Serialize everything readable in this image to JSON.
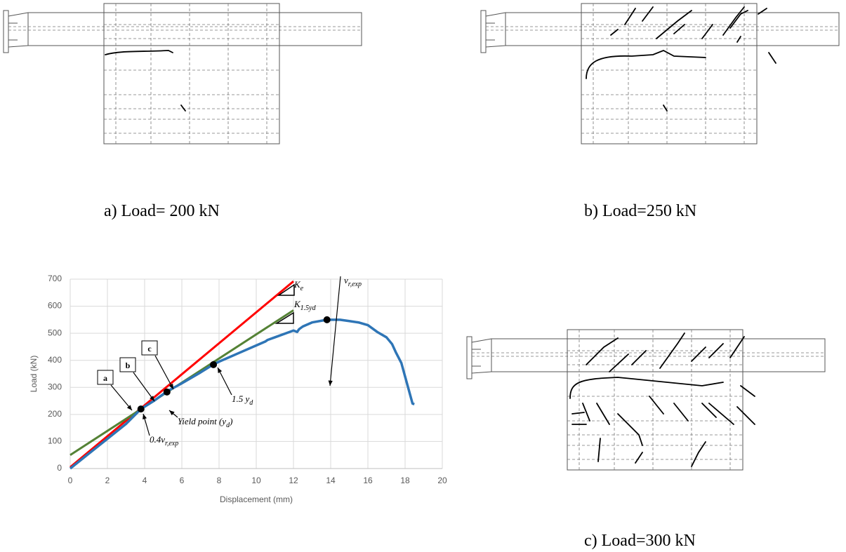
{
  "captions": [
    "a)  Load= 200 kN",
    "b) Load=250 kN",
    "c) Load=300 kN"
  ],
  "chart_data": {
    "type": "line",
    "x_label": "Displacement (mm)",
    "y_label": "Load (kN)",
    "xlim": [
      0,
      20
    ],
    "ylim": [
      0,
      700
    ],
    "xticks": [
      0,
      2,
      4,
      6,
      8,
      10,
      12,
      14,
      16,
      18,
      20
    ],
    "yticks": [
      0,
      100,
      200,
      300,
      400,
      500,
      600,
      700
    ],
    "grid": true,
    "series": [
      {
        "color": "#2e75b6",
        "x": [
          0,
          1,
          2,
          3,
          3.8,
          4.5,
          5.2,
          6,
          7,
          7.7,
          8,
          9,
          10,
          10.5,
          10.6,
          11,
          12,
          12.2,
          12.3,
          12.5,
          13,
          13.8,
          14.5,
          15,
          15.5,
          16,
          16.5,
          17,
          17.3,
          17.5,
          17.8,
          18,
          18.2,
          18.4,
          18.5
        ],
        "values": [
          0,
          55,
          110,
          165,
          220,
          250,
          285,
          315,
          355,
          385,
          395,
          425,
          455,
          470,
          475,
          485,
          510,
          505,
          515,
          525,
          540,
          550,
          550,
          545,
          540,
          530,
          505,
          485,
          460,
          430,
          390,
          340,
          290,
          240,
          238
        ]
      },
      {
        "color": "#ff0000",
        "x": [
          0,
          12
        ],
        "values": [
          5,
          692
        ]
      },
      {
        "color": "#548235",
        "x": [
          0,
          12
        ],
        "values": [
          50,
          585
        ]
      }
    ],
    "markers": {
      "color": "#000000",
      "x": [
        3.8,
        5.2,
        7.7,
        13.8
      ],
      "values": [
        220,
        283,
        384,
        550
      ]
    },
    "annotations": [
      {
        "text": "a"
      },
      {
        "text": "b"
      },
      {
        "text": "c"
      },
      {
        "text": "Yield point (y",
        "sub": "d",
        "tail": ")"
      },
      {
        "text": "0.4v",
        "sub": "r,exp"
      },
      {
        "text": "1.5 y",
        "sub": "d"
      },
      {
        "text": "K",
        "sub": "e"
      },
      {
        "text": "K",
        "sub": "1.5yd"
      },
      {
        "text": "v",
        "sub": "r,exp"
      }
    ]
  }
}
